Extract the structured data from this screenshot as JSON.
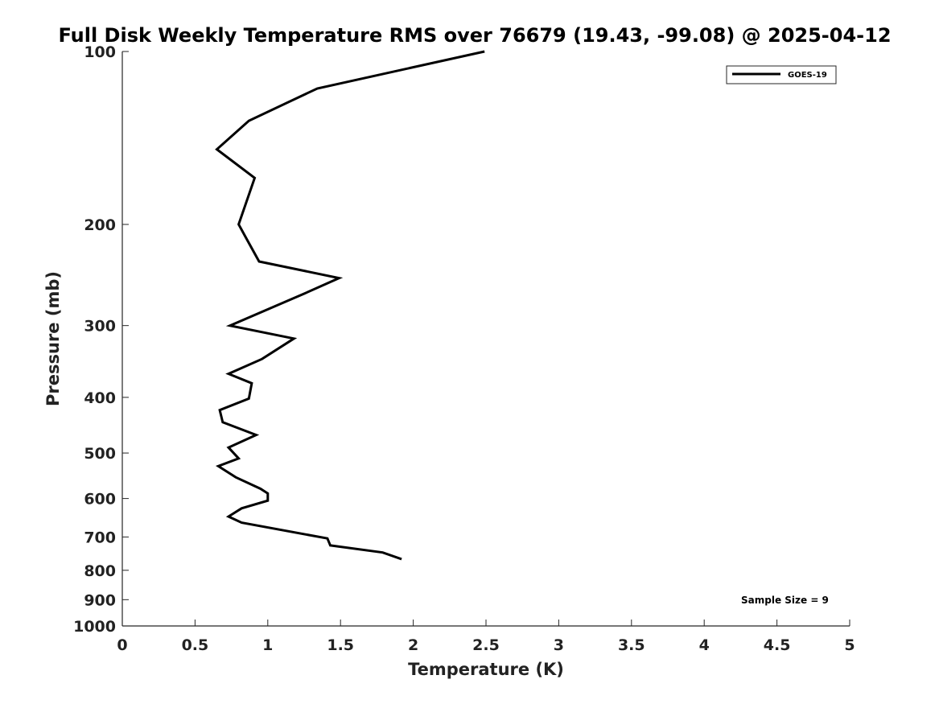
{
  "chart_data": {
    "type": "line",
    "title": "Full Disk Weekly Temperature RMS over 76679 (19.43, -99.08) @ 2025-04-12",
    "xlabel": "Temperature (K)",
    "ylabel": "Pressure (mb)",
    "xlim": [
      0,
      5
    ],
    "ylim": [
      100,
      1000
    ],
    "y_scale": "log",
    "y_reversed": true,
    "grid": false,
    "x_ticks": [
      0,
      0.5,
      1,
      1.5,
      2,
      2.5,
      3,
      3.5,
      4,
      4.5,
      5
    ],
    "x_tick_labels": [
      "0",
      "0.5",
      "1",
      "1.5",
      "2",
      "2.5",
      "3",
      "3.5",
      "4",
      "4.5",
      "5"
    ],
    "y_ticks": [
      100,
      200,
      300,
      400,
      500,
      600,
      700,
      800,
      900,
      1000
    ],
    "y_tick_labels": [
      "100",
      "200",
      "300",
      "400",
      "500",
      "600",
      "700",
      "800",
      "900",
      "1000"
    ],
    "legend_position": "top-right",
    "series": [
      {
        "name": "GOES-19",
        "color": "#000000",
        "points": [
          {
            "x": 2.49,
            "y": 100
          },
          {
            "x": 1.34,
            "y": 116
          },
          {
            "x": 0.87,
            "y": 132
          },
          {
            "x": 0.65,
            "y": 148
          },
          {
            "x": 0.91,
            "y": 166
          },
          {
            "x": 0.8,
            "y": 200
          },
          {
            "x": 0.85,
            "y": 211
          },
          {
            "x": 0.94,
            "y": 232
          },
          {
            "x": 1.49,
            "y": 248
          },
          {
            "x": 1.25,
            "y": 264
          },
          {
            "x": 0.74,
            "y": 300
          },
          {
            "x": 1.18,
            "y": 316
          },
          {
            "x": 0.96,
            "y": 343
          },
          {
            "x": 0.73,
            "y": 364
          },
          {
            "x": 0.89,
            "y": 378
          },
          {
            "x": 0.87,
            "y": 402
          },
          {
            "x": 0.67,
            "y": 421
          },
          {
            "x": 0.69,
            "y": 442
          },
          {
            "x": 0.92,
            "y": 465
          },
          {
            "x": 0.73,
            "y": 489
          },
          {
            "x": 0.8,
            "y": 511
          },
          {
            "x": 0.66,
            "y": 527
          },
          {
            "x": 0.78,
            "y": 551
          },
          {
            "x": 0.95,
            "y": 577
          },
          {
            "x": 1.0,
            "y": 588
          },
          {
            "x": 1.0,
            "y": 605
          },
          {
            "x": 0.82,
            "y": 624
          },
          {
            "x": 0.73,
            "y": 645
          },
          {
            "x": 0.82,
            "y": 661
          },
          {
            "x": 1.41,
            "y": 704
          },
          {
            "x": 1.43,
            "y": 724
          },
          {
            "x": 1.79,
            "y": 745
          },
          {
            "x": 1.92,
            "y": 765
          }
        ]
      }
    ],
    "annotations": [
      "Sample Size = 9"
    ]
  }
}
